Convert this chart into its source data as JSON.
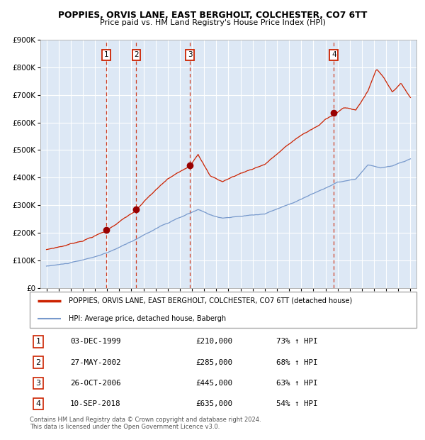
{
  "title": "POPPIES, ORVIS LANE, EAST BERGHOLT, COLCHESTER, CO7 6TT",
  "subtitle": "Price paid vs. HM Land Registry's House Price Index (HPI)",
  "hpi_line_color": "#7799cc",
  "price_line_color": "#cc2200",
  "marker_color": "#990000",
  "vline_color": "#cc2200",
  "plot_bg": "#dde8f5",
  "ylim": [
    0,
    900000
  ],
  "yticks": [
    0,
    100000,
    200000,
    300000,
    400000,
    500000,
    600000,
    700000,
    800000,
    900000
  ],
  "ytick_labels": [
    "£0",
    "£100K",
    "£200K",
    "£300K",
    "£400K",
    "£500K",
    "£600K",
    "£700K",
    "£800K",
    "£900K"
  ],
  "xlim_start": 1994.5,
  "xlim_end": 2025.5,
  "xtick_years": [
    1995,
    1996,
    1997,
    1998,
    1999,
    2000,
    2001,
    2002,
    2003,
    2004,
    2005,
    2006,
    2007,
    2008,
    2009,
    2010,
    2011,
    2012,
    2013,
    2014,
    2015,
    2016,
    2017,
    2018,
    2019,
    2020,
    2021,
    2022,
    2023,
    2024,
    2025
  ],
  "sales": [
    {
      "num": 1,
      "date": "03-DEC-1999",
      "year": 1999.92,
      "price": 210000,
      "pct": "73%",
      "dir": "↑"
    },
    {
      "num": 2,
      "date": "27-MAY-2002",
      "year": 2002.41,
      "price": 285000,
      "pct": "68%",
      "dir": "↑"
    },
    {
      "num": 3,
      "date": "26-OCT-2006",
      "year": 2006.82,
      "price": 445000,
      "pct": "63%",
      "dir": "↑"
    },
    {
      "num": 4,
      "date": "10-SEP-2018",
      "year": 2018.69,
      "price": 635000,
      "pct": "54%",
      "dir": "↑"
    }
  ],
  "legend_label1": "POPPIES, ORVIS LANE, EAST BERGHOLT, COLCHESTER, CO7 6TT (detached house)",
  "legend_label2": "HPI: Average price, detached house, Babergh",
  "footer": "Contains HM Land Registry data © Crown copyright and database right 2024.\nThis data is licensed under the Open Government Licence v3.0."
}
